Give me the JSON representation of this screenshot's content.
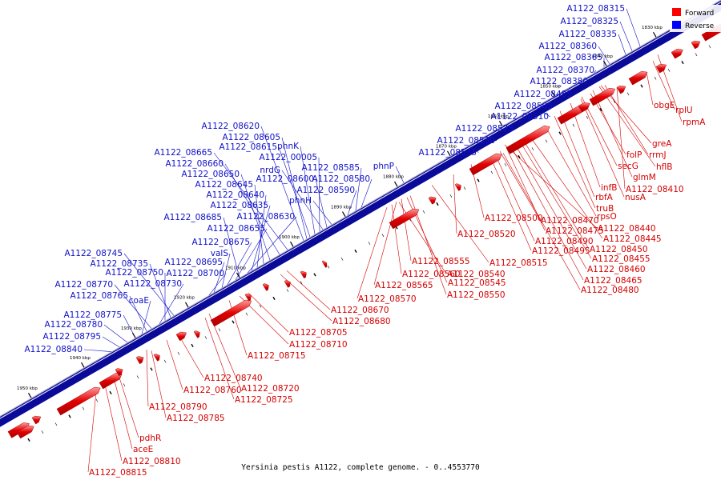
{
  "caption": "Yersinia pestis A1122, complete genome. - 0..4553770",
  "legend": [
    {
      "label": "Forward",
      "color": "#ff0000"
    },
    {
      "label": "Reverse",
      "color": "#0000ff"
    }
  ],
  "colors": {
    "forward": "#e00000",
    "reverse": "#1d1de0",
    "label_forward": "#d40000",
    "label_reverse": "#1010c8"
  },
  "chart_data": {
    "type": "genome-map",
    "tick_labels": [
      "1830 kbp",
      "1840 kbp",
      "1850 kbp",
      "1860 kbp",
      "1870 kbp",
      "1880 kbp",
      "1890 kbp",
      "1900 kbp",
      "1910 kbp",
      "1920 kbp",
      "1930 kbp",
      "1940 kbp",
      "1950 kbp"
    ],
    "reverse_labels": [
      "A1122_08315",
      "A1122_08325",
      "A1122_08335",
      "A1122_08360",
      "A1122_08365",
      "A1122_08370",
      "A1122_08380",
      "A1122_08485",
      "A1122_08505",
      "A1122_08510",
      "A1122_08525",
      "A1122_08530",
      "A1122_08535",
      "phnP",
      "A1122_08580",
      "A1122_08585",
      "A1122_08590",
      "phnH",
      "A1122_08620",
      "A1122_08605",
      "A1122_08615",
      "phnK",
      "A1122_00005",
      "A1122_08600",
      "nrdG",
      "A1122_08665",
      "A1122_08660",
      "A1122_08650",
      "A1122_08645",
      "A1122_08640",
      "A1122_08635",
      "A1122_08630",
      "A1122_08685",
      "A1122_08655",
      "A1122_08675",
      "valS",
      "A1122_08695",
      "A1122_08700",
      "A1122_08745",
      "A1122_08735",
      "A1122_08750",
      "A1122_08730",
      "A1122_08770",
      "A1122_08765",
      "coaE",
      "A1122_08775",
      "A1122_08780",
      "A1122_08795",
      "A1122_08840"
    ],
    "forward_labels": [
      "obgE",
      "rplU",
      "rpmA",
      "greA",
      "rrmJ",
      "folP",
      "hflB",
      "secG",
      "glmM",
      "A1122_08410",
      "infB",
      "nusA",
      "rbfA",
      "truB",
      "rpsO",
      "A1122_08440",
      "A1122_08470",
      "A1122_08475",
      "A1122_08445",
      "A1122_08490",
      "A1122_08450",
      "A1122_08495",
      "A1122_08455",
      "A1122_08460",
      "A1122_08465",
      "A1122_08480",
      "A1122_08500",
      "A1122_08520",
      "A1122_08515",
      "A1122_08555",
      "A1122_08540",
      "A1122_08560",
      "A1122_08545",
      "A1122_08565",
      "A1122_08550",
      "A1122_08570",
      "A1122_08670",
      "A1122_08680",
      "A1122_08705",
      "A1122_08710",
      "A1122_08715",
      "A1122_08740",
      "A1122_08720",
      "A1122_08760",
      "A1122_08725",
      "A1122_08790",
      "A1122_08785",
      "pdhR",
      "aceE",
      "A1122_08810",
      "A1122_08815"
    ]
  }
}
